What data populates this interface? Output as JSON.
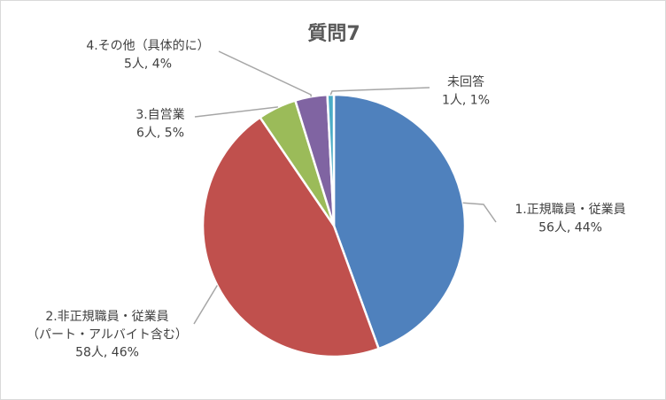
{
  "chart_data": {
    "type": "pie",
    "title": "質問7",
    "slices": [
      {
        "label_lines": [
          "1.正規職員・従業員",
          "56人, 44%"
        ],
        "value": 56,
        "percent": 44,
        "color": "#4f81bd"
      },
      {
        "label_lines": [
          "2.非正規職員・従業員",
          "（パート・アルバイト含む）",
          "58人, 46%"
        ],
        "value": 58,
        "percent": 46,
        "color": "#c0504d"
      },
      {
        "label_lines": [
          "3.自営業",
          "6人, 5%"
        ],
        "value": 6,
        "percent": 5,
        "color": "#9bbb59"
      },
      {
        "label_lines": [
          "4.その他（具体的に）",
          "5人, 4%"
        ],
        "value": 5,
        "percent": 4,
        "color": "#8064a2"
      },
      {
        "label_lines": [
          "未回答",
          "1人, 1%"
        ],
        "value": 1,
        "percent": 1,
        "color": "#4bacc6"
      }
    ],
    "legend": "none",
    "leader_line_color": "#a6a6a6"
  }
}
